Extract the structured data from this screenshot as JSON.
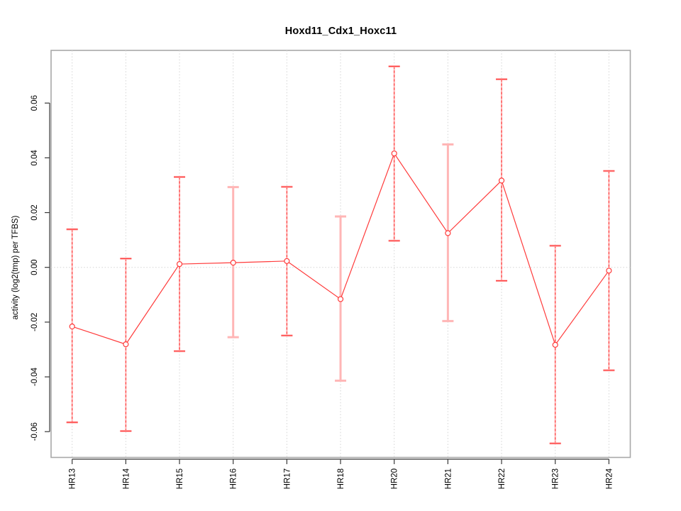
{
  "title": "Hoxd11_Cdx1_Hoxc11",
  "chart_data": {
    "type": "line",
    "title": "Hoxd11_Cdx1_Hoxc11",
    "xlabel": "",
    "ylabel": "activity (log2(tmp) per TFBS)",
    "categories": [
      "HR13",
      "HR14",
      "HR15",
      "HR16",
      "HR17",
      "HR18",
      "HR20",
      "HR21",
      "HR22",
      "HR23",
      "HR24"
    ],
    "series": [
      {
        "name": "activity",
        "marker": "open-circle",
        "values": [
          -0.0216,
          -0.0281,
          0.0012,
          0.0017,
          0.0023,
          -0.0116,
          0.0416,
          0.0125,
          0.0317,
          -0.0283,
          -0.0012
        ],
        "error_upper": [
          0.0139,
          0.0032,
          0.033,
          0.0293,
          0.0294,
          0.0186,
          0.0734,
          0.0449,
          0.0687,
          0.0079,
          0.0352
        ],
        "error_lower": [
          -0.0566,
          -0.0598,
          -0.0306,
          -0.0255,
          -0.0249,
          -0.0414,
          0.0097,
          -0.0196,
          -0.0049,
          -0.0643,
          -0.0376
        ],
        "error_bar_styles": [
          "dashed",
          "dashed",
          "dashed",
          "solid",
          "dashed",
          "solid",
          "dashed",
          "solid",
          "dashed",
          "dashed",
          "dashed"
        ]
      }
    ],
    "ytick_labels": [
      "-0.06",
      "-0.04",
      "-0.02",
      "0.00",
      "0.02",
      "0.04",
      "0.06"
    ],
    "ytick_values": [
      -0.06,
      -0.04,
      -0.02,
      0,
      0.02,
      0.04,
      0.06
    ],
    "ylim": [
      -0.0693,
      0.0792
    ],
    "grid": "vertical dotted line at each category, horizontal dotted line at zero",
    "legend": "none",
    "colors": {
      "series": "#ff3b3b",
      "error_bar_pale": "#ffb6b6",
      "grid": "#d6d6d6",
      "box": "#a8a8a8",
      "axis": "#383838",
      "text": "#000000",
      "background": "#ffffff"
    }
  }
}
